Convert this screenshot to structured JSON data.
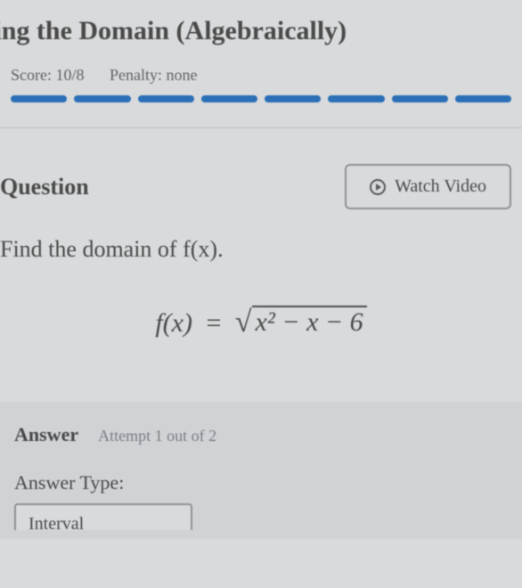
{
  "page": {
    "title": "nding the Domain (Algebraically)"
  },
  "meta": {
    "score_label": "Score:",
    "score_value": "10/8",
    "penalty_label": "Penalty:",
    "penalty_value": "none"
  },
  "progress": {
    "total_segments": 8,
    "filled_segments": 8,
    "filled_color": "#2b6fb7",
    "empty_color": "#b7bcc2"
  },
  "question": {
    "heading": "Question",
    "watch_video_label": "Watch Video",
    "prompt": "Find the domain of f(x).",
    "equation": {
      "lhs": "f(x)",
      "op": "=",
      "radicand": "x² − x − 6"
    }
  },
  "answer": {
    "heading_bold": "Answer",
    "heading_sub": "Attempt 1 out of 2",
    "type_label": "Answer Type:",
    "type_selected": "Interval"
  },
  "colors": {
    "background": "#d8dadc",
    "text_primary": "#4a4a4a",
    "text_muted": "#636363",
    "border": "#8e9094",
    "answer_bg": "#d0d2d5"
  },
  "typography": {
    "font_family": "Georgia, serif",
    "title_size_pt": 30,
    "heading_size_pt": 26,
    "body_size_pt": 22,
    "equation_size_pt": 30
  }
}
